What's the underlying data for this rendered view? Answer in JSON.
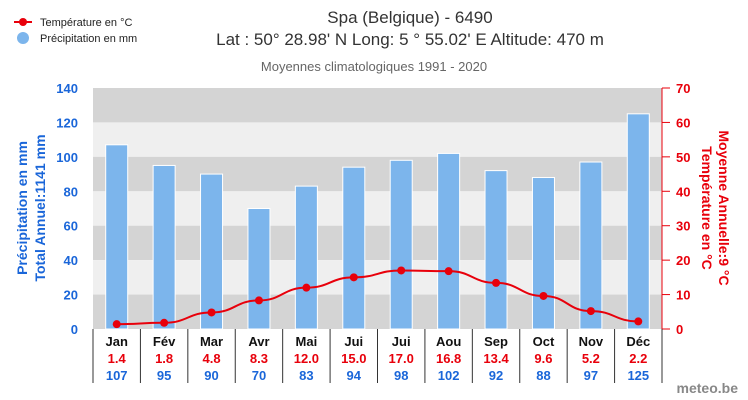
{
  "chart_data": {
    "type": "bar+line",
    "title": "Spa (Belgique) - 6490",
    "subtitle": "Lat : 50° 28.98' N Long: 5 ° 55.02' E Altitude: 470 m",
    "period": "Moyennes climatologiques 1991 - 2020",
    "categories": [
      "Jan",
      "Fév",
      "Mar",
      "Avr",
      "Mai",
      "Jui",
      "Jui",
      "Aou",
      "Sep",
      "Oct",
      "Nov",
      "Déc"
    ],
    "series": [
      {
        "name": "Précipitation en mm",
        "type": "bar",
        "axis": "left",
        "color": "#7cb5ec",
        "values": [
          107,
          95,
          90,
          70,
          83,
          94,
          98,
          102,
          92,
          88,
          97,
          125
        ]
      },
      {
        "name": "Température en °C",
        "type": "line",
        "axis": "right",
        "color": "#e8000b",
        "values": [
          1.4,
          1.8,
          4.8,
          8.3,
          12.0,
          15.0,
          17.0,
          16.8,
          13.4,
          9.6,
          5.2,
          2.2
        ]
      }
    ],
    "temp_labels": [
      "1.4",
      "1.8",
      "4.8",
      "8.3",
      "12.0",
      "15.0",
      "17.0",
      "16.8",
      "13.4",
      "9.6",
      "5.2",
      "2.2"
    ],
    "ylabel_left": [
      "Précipitation en mm",
      "Total Annuel:1141 mm"
    ],
    "ylabel_right": [
      "Température en °C",
      "Moyenne Annuelle:9 °C"
    ],
    "ylim_left": [
      0,
      140
    ],
    "yticks_left": [
      0,
      20,
      40,
      60,
      80,
      100,
      120,
      140
    ],
    "ylim_right": [
      0,
      70
    ],
    "yticks_right": [
      0,
      10,
      20,
      30,
      40,
      50,
      60,
      70
    ],
    "legend": [
      "Température en °C",
      "Précipitation en mm"
    ],
    "legend_position": "top-left",
    "left_color": "#1a66d9",
    "right_color": "#e8000b"
  },
  "credit": "meteo.be"
}
